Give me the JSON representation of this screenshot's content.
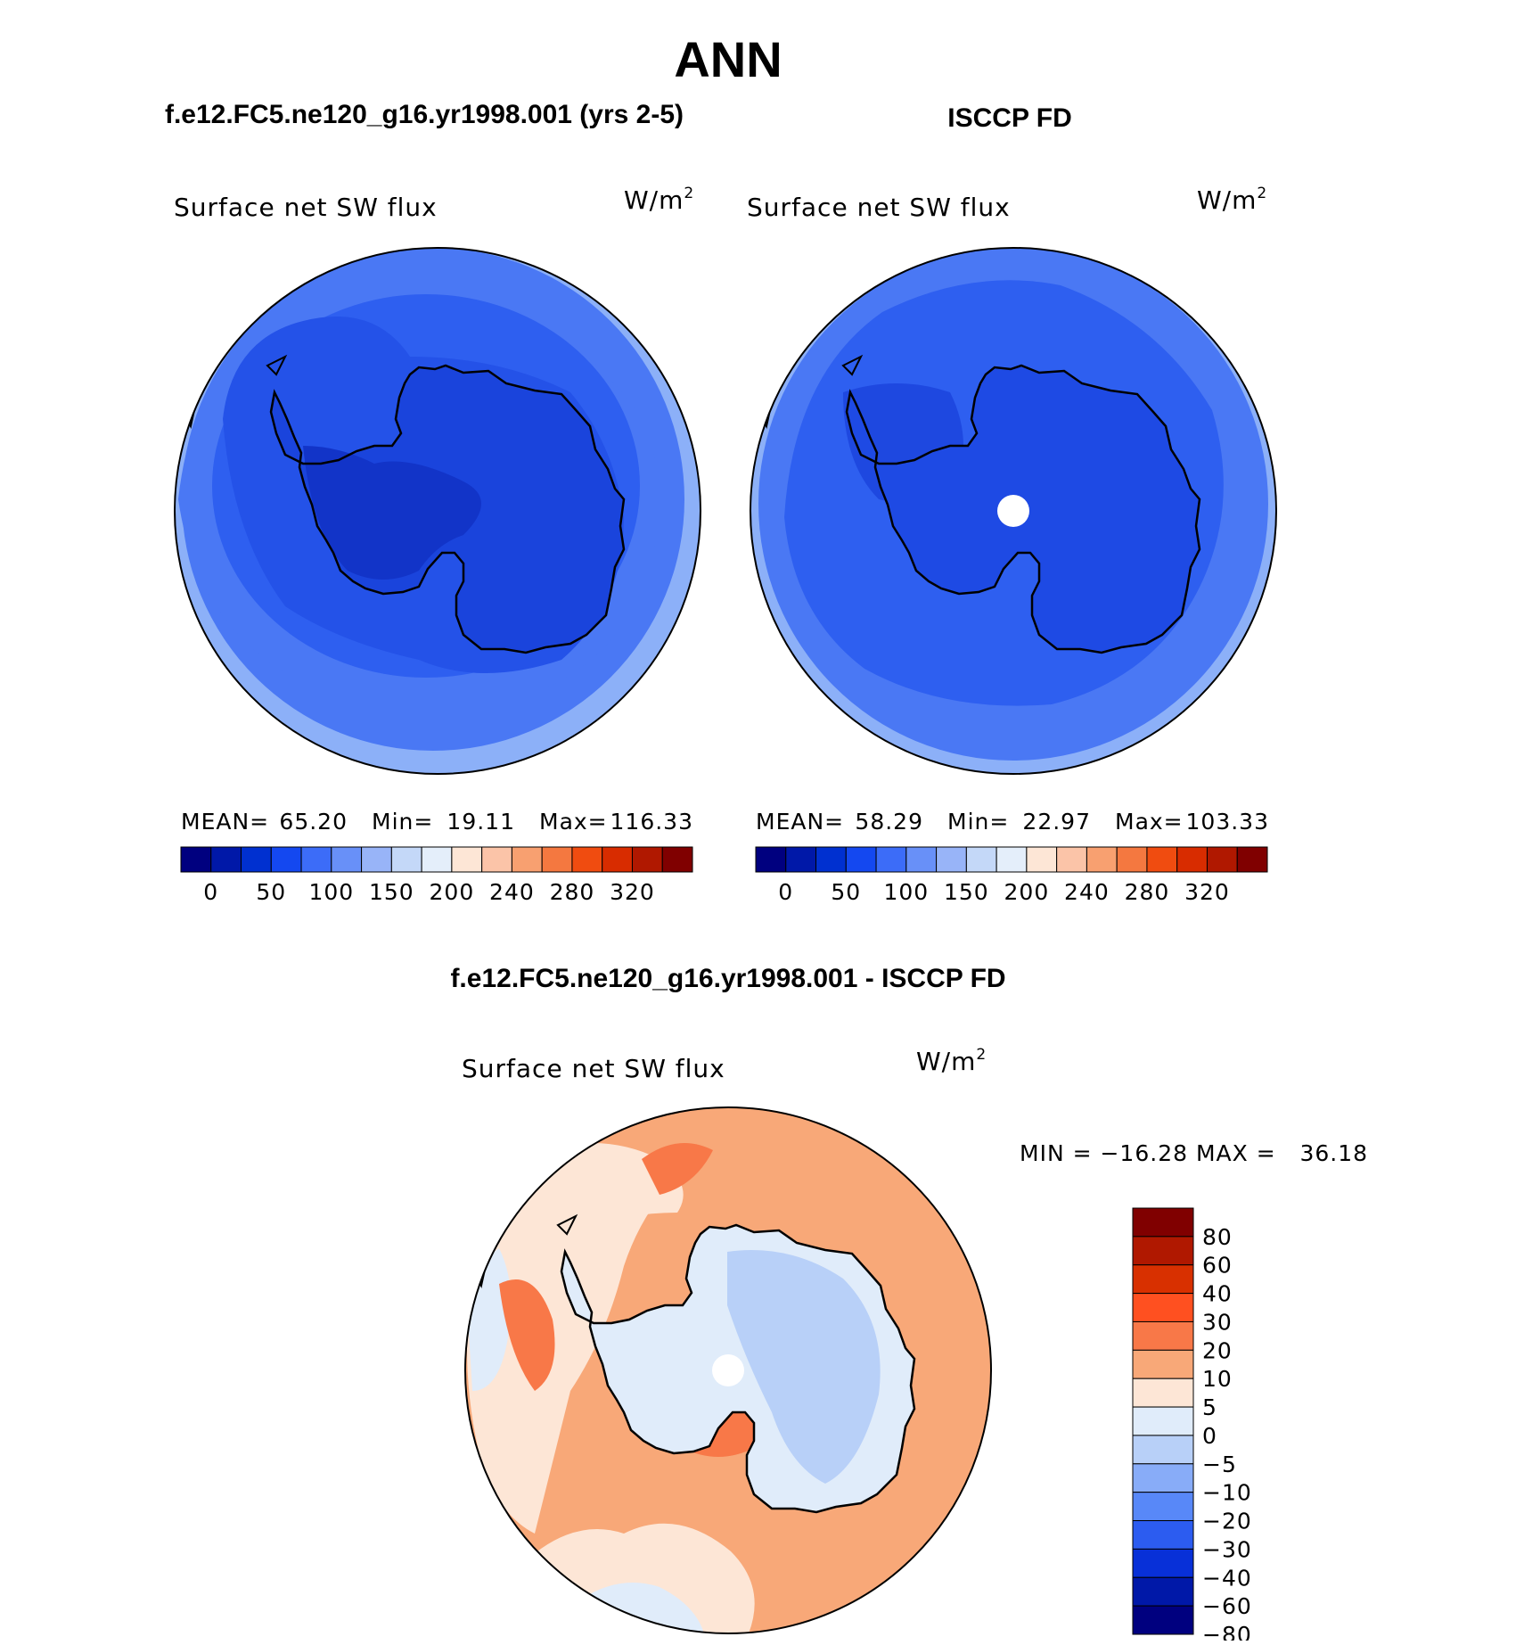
{
  "title": "ANN",
  "panels": [
    {
      "header": "f.e12.FC5.ne120_g16.yr1998.001 (yrs 2-5)",
      "variable": "Surface net SW flux",
      "units_base": "W/m",
      "units_exp": "2",
      "stats": {
        "mean_label": "MEAN=",
        "mean": "65.20",
        "min_label": "Min=",
        "min": "19.11",
        "max_label": "Max=",
        "max": "116.33"
      }
    },
    {
      "header": "ISCCP FD",
      "variable": "Surface net SW flux",
      "units_base": "W/m",
      "units_exp": "2",
      "stats": {
        "mean_label": "MEAN=",
        "mean": "58.29",
        "min_label": "Min=",
        "min": "22.97",
        "max_label": "Max=",
        "max": "103.33"
      }
    }
  ],
  "diff": {
    "header": "f.e12.FC5.ne120_g16.yr1998.001 - ISCCP FD",
    "variable": "Surface net SW flux",
    "units_base": "W/m",
    "units_exp": "2",
    "minmax": "MIN = −16.28 MAX =   36.18"
  },
  "colorbar_abs": {
    "colors": [
      "#00007f",
      "#0018a8",
      "#0030d0",
      "#1448f0",
      "#3c6cf8",
      "#6890f8",
      "#98b4f8",
      "#c4d8f8",
      "#e4eefa",
      "#fde6d6",
      "#fbc4a8",
      "#f8a070",
      "#f47840",
      "#f04c10",
      "#d82c00",
      "#b01800",
      "#800000"
    ],
    "tick_labels": [
      "0",
      "50",
      "100",
      "150",
      "200",
      "240",
      "280",
      "320"
    ]
  },
  "colorbar_diff": {
    "colors": [
      "#800000",
      "#b01800",
      "#d83000",
      "#ff5020",
      "#f87848",
      "#f8a878",
      "#fde6d6",
      "#e0ecfa",
      "#b8d0f8",
      "#88acf8",
      "#5888f8",
      "#2c5cf0",
      "#0830d8",
      "#0018a8",
      "#00007f"
    ],
    "tick_labels": [
      "80",
      "60",
      "40",
      "30",
      "20",
      "10",
      "5",
      "0",
      "−5",
      "−10",
      "−20",
      "−30",
      "−40",
      "−60",
      "−80"
    ]
  }
}
